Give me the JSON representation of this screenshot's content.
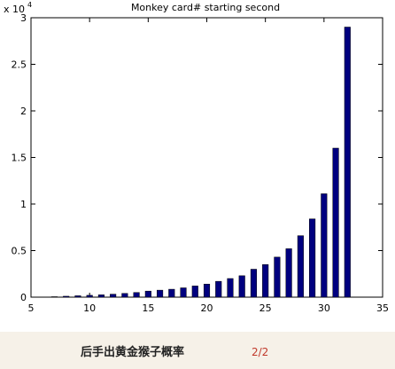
{
  "chart_data": {
    "type": "bar",
    "title": "Monkey card# starting second",
    "y_exponent": {
      "base": "x 10",
      "power": "4"
    },
    "x": [
      7,
      8,
      9,
      10,
      11,
      12,
      13,
      14,
      15,
      16,
      17,
      18,
      19,
      20,
      21,
      22,
      23,
      24,
      25,
      26,
      27,
      28,
      29,
      30,
      31,
      32
    ],
    "values": [
      0.005,
      0.01,
      0.015,
      0.02,
      0.025,
      0.032,
      0.04,
      0.05,
      0.065,
      0.075,
      0.085,
      0.1,
      0.12,
      0.14,
      0.17,
      0.2,
      0.23,
      0.3,
      0.35,
      0.43,
      0.52,
      0.66,
      0.84,
      1.11,
      1.6,
      2.9
    ],
    "color": "#00007f",
    "xlim": [
      5,
      35
    ],
    "xticks": [
      5,
      10,
      15,
      20,
      25,
      30,
      35
    ],
    "ylim": [
      0,
      3
    ],
    "yticks": [
      0,
      0.5,
      1,
      1.5,
      2,
      2.5,
      3
    ]
  },
  "caption": {
    "text": "后手出黄金猴子概率",
    "page": "2/2"
  }
}
